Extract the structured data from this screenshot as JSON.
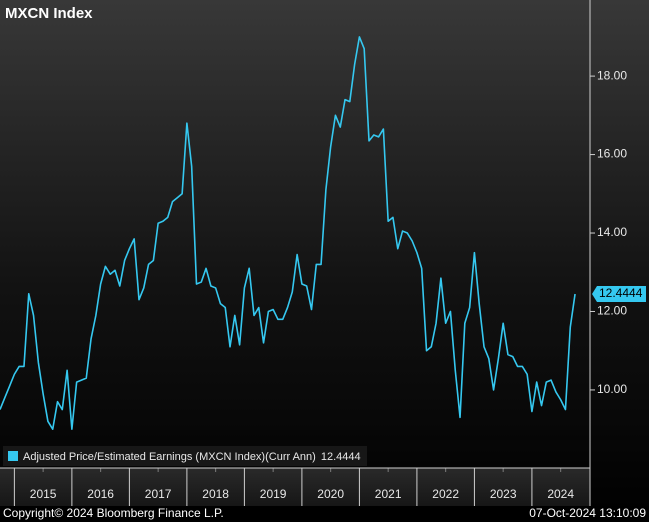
{
  "chart_data": {
    "type": "line",
    "title": "MXCN Index",
    "footer_left": "Copyright© 2024 Bloomberg Finance L.P.",
    "footer_right": "07-Oct-2024 13:10:09",
    "series": [
      {
        "name": "Adjusted Price/Estimated Earnings (MXCN Index)(Curr Ann)",
        "color": "#35c8f0",
        "x": [
          2014.75,
          2014.833,
          2014.917,
          2015,
          2015.083,
          2015.167,
          2015.25,
          2015.333,
          2015.417,
          2015.5,
          2015.583,
          2015.667,
          2015.75,
          2015.833,
          2015.917,
          2016,
          2016.083,
          2016.167,
          2016.25,
          2016.333,
          2016.417,
          2016.5,
          2016.583,
          2016.667,
          2016.75,
          2016.833,
          2016.917,
          2017,
          2017.083,
          2017.167,
          2017.25,
          2017.333,
          2017.417,
          2017.5,
          2017.583,
          2017.667,
          2017.75,
          2017.833,
          2017.917,
          2018,
          2018.083,
          2018.167,
          2018.25,
          2018.333,
          2018.417,
          2018.5,
          2018.583,
          2018.667,
          2018.75,
          2018.833,
          2018.917,
          2019,
          2019.083,
          2019.167,
          2019.25,
          2019.333,
          2019.417,
          2019.5,
          2019.583,
          2019.667,
          2019.75,
          2019.833,
          2019.917,
          2020,
          2020.083,
          2020.167,
          2020.25,
          2020.333,
          2020.417,
          2020.5,
          2020.583,
          2020.667,
          2020.75,
          2020.833,
          2020.917,
          2021,
          2021.083,
          2021.167,
          2021.25,
          2021.333,
          2021.417,
          2021.5,
          2021.583,
          2021.667,
          2021.75,
          2021.833,
          2021.917,
          2022,
          2022.083,
          2022.167,
          2022.25,
          2022.333,
          2022.417,
          2022.5,
          2022.583,
          2022.667,
          2022.75,
          2022.833,
          2022.917,
          2023,
          2023.083,
          2023.167,
          2023.25,
          2023.333,
          2023.417,
          2023.5,
          2023.583,
          2023.667,
          2023.75,
          2023.833,
          2023.917,
          2024,
          2024.083,
          2024.167,
          2024.25,
          2024.333,
          2024.417,
          2024.5,
          2024.583,
          2024.667,
          2024.75
        ],
        "values": [
          9.5,
          9.8,
          10.1,
          10.4,
          10.6,
          10.6,
          12.45,
          11.9,
          10.7,
          9.9,
          9.2,
          9.0,
          9.7,
          9.5,
          10.5,
          9.0,
          10.2,
          10.25,
          10.3,
          11.3,
          11.9,
          12.7,
          13.15,
          12.95,
          13.05,
          12.65,
          13.3,
          13.6,
          13.85,
          12.3,
          12.6,
          13.2,
          13.3,
          14.25,
          14.3,
          14.4,
          14.8,
          14.9,
          15.0,
          16.8,
          15.7,
          12.7,
          12.75,
          13.1,
          12.65,
          12.6,
          12.2,
          12.1,
          11.1,
          11.9,
          11.15,
          12.6,
          13.1,
          11.9,
          12.1,
          11.2,
          12.0,
          12.05,
          11.8,
          11.8,
          12.1,
          12.5,
          13.45,
          12.7,
          12.65,
          12.05,
          13.2,
          13.2,
          15.1,
          16.2,
          17.0,
          16.7,
          17.4,
          17.35,
          18.3,
          19.0,
          18.7,
          16.35,
          16.5,
          16.45,
          16.65,
          14.3,
          14.4,
          13.6,
          14.05,
          14.0,
          13.8,
          13.5,
          13.1,
          11.0,
          11.1,
          11.7,
          12.85,
          11.7,
          12.0,
          10.5,
          9.3,
          11.7,
          12.1,
          13.5,
          12.2,
          11.1,
          10.8,
          10.0,
          10.8,
          11.7,
          10.9,
          10.85,
          10.6,
          10.6,
          10.4,
          9.45,
          10.2,
          9.6,
          10.2,
          10.25,
          9.95,
          9.75,
          9.5,
          11.6,
          12.4444
        ]
      }
    ],
    "xlim": [
      2014.75,
      2025.01
    ],
    "xticks": [
      {
        "value": 2015.5,
        "label": "2015"
      },
      {
        "value": 2016.5,
        "label": "2016"
      },
      {
        "value": 2017.5,
        "label": "2017"
      },
      {
        "value": 2018.5,
        "label": "2018"
      },
      {
        "value": 2019.5,
        "label": "2019"
      },
      {
        "value": 2020.5,
        "label": "2020"
      },
      {
        "value": 2021.5,
        "label": "2021"
      },
      {
        "value": 2022.5,
        "label": "2022"
      },
      {
        "value": 2023.5,
        "label": "2023"
      },
      {
        "value": 2024.5,
        "label": "2024"
      }
    ],
    "ylim": [
      8.01,
      19.94
    ],
    "yticks": [
      {
        "value": 10,
        "label": "10.00"
      },
      {
        "value": 12,
        "label": "12.00"
      },
      {
        "value": 14,
        "label": "14.00"
      },
      {
        "value": 16,
        "label": "16.00"
      },
      {
        "value": 18,
        "label": "18.00"
      }
    ]
  }
}
